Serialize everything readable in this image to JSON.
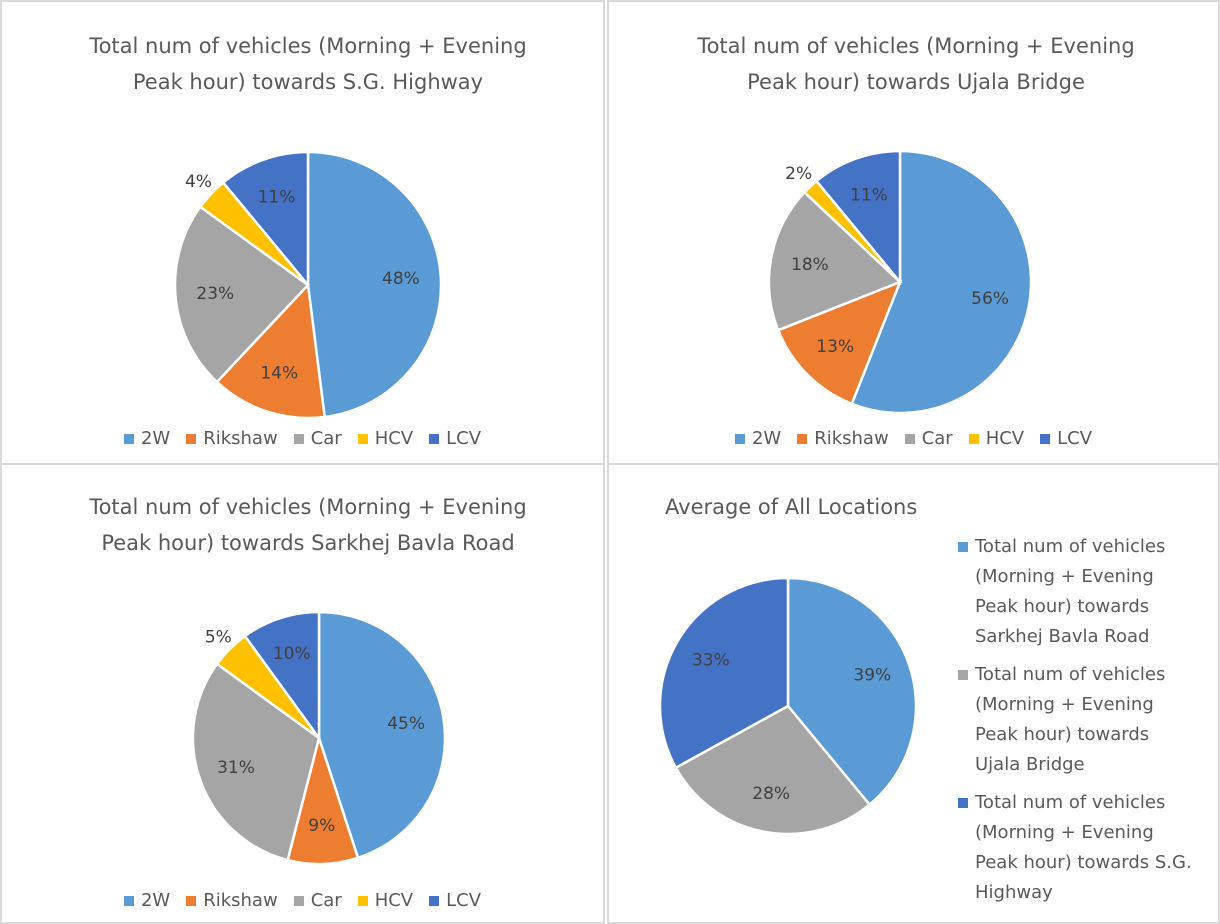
{
  "chart_data": [
    {
      "type": "pie",
      "title": "Total num of vehicles (Morning + Evening Peak hour) towards S.G. Highway",
      "categories": [
        "2W",
        "Rikshaw",
        "Car",
        "HCV",
        "LCV"
      ],
      "values": [
        48,
        14,
        23,
        4,
        11
      ],
      "value_labels": [
        "48%",
        "14%",
        "23%",
        "4%",
        "11%"
      ],
      "colors": [
        "#5b9bd5",
        "#ed7d31",
        "#a5a5a5",
        "#ffc000",
        "#4472c4"
      ],
      "legend": "bottom"
    },
    {
      "type": "pie",
      "title": "Total num of vehicles (Morning + Evening Peak hour) towards Ujala Bridge",
      "categories": [
        "2W",
        "Rikshaw",
        "Car",
        "HCV",
        "LCV"
      ],
      "values": [
        56,
        13,
        18,
        2,
        11
      ],
      "value_labels": [
        "56%",
        "13%",
        "18%",
        "2%",
        "11%"
      ],
      "colors": [
        "#5b9bd5",
        "#ed7d31",
        "#a5a5a5",
        "#ffc000",
        "#4472c4"
      ],
      "legend": "bottom"
    },
    {
      "type": "pie",
      "title": "Total num of vehicles (Morning + Evening Peak hour) towards Sarkhej Bavla Road",
      "categories": [
        "2W",
        "Rikshaw",
        "Car",
        "HCV",
        "LCV"
      ],
      "values": [
        45,
        9,
        31,
        5,
        10
      ],
      "value_labels": [
        "45%",
        "9%",
        "31%",
        "5%",
        "10%"
      ],
      "colors": [
        "#5b9bd5",
        "#ed7d31",
        "#a5a5a5",
        "#ffc000",
        "#4472c4"
      ],
      "legend": "bottom"
    },
    {
      "type": "pie",
      "title": "Average of All Locations",
      "categories": [
        "Total num of vehicles (Morning + Evening Peak hour) towards Sarkhej Bavla Road",
        "Total num of vehicles (Morning + Evening Peak hour) towards Ujala Bridge",
        "Total num of vehicles (Morning + Evening Peak hour) towards S.G. Highway"
      ],
      "values": [
        39,
        28,
        33
      ],
      "value_labels": [
        "39%",
        "28%",
        "33%"
      ],
      "colors": [
        "#5b9bd5",
        "#a5a5a5",
        "#4472c4"
      ],
      "legend": "right"
    }
  ]
}
